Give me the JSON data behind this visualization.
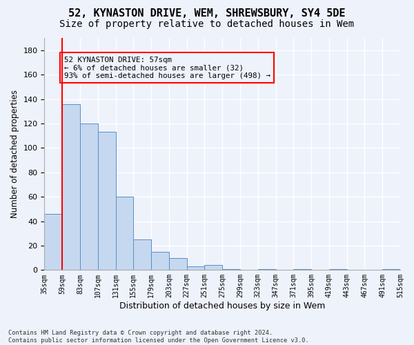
{
  "title1": "52, KYNASTON DRIVE, WEM, SHREWSBURY, SY4 5DE",
  "title2": "Size of property relative to detached houses in Wem",
  "xlabel": "Distribution of detached houses by size in Wem",
  "ylabel": "Number of detached properties",
  "footnote": "Contains HM Land Registry data © Crown copyright and database right 2024.\nContains public sector information licensed under the Open Government Licence v3.0.",
  "bin_edges": [
    "35sqm",
    "59sqm",
    "83sqm",
    "107sqm",
    "131sqm",
    "155sqm",
    "179sqm",
    "203sqm",
    "227sqm",
    "251sqm",
    "275sqm",
    "299sqm",
    "323sqm",
    "347sqm",
    "371sqm",
    "395sqm",
    "419sqm",
    "443sqm",
    "467sqm",
    "491sqm",
    "515sqm"
  ],
  "bar_values": [
    46,
    136,
    120,
    113,
    60,
    25,
    15,
    10,
    3,
    4,
    1,
    0,
    1,
    0,
    1,
    0,
    1,
    0,
    0,
    1
  ],
  "bar_color": "#c5d8f0",
  "bar_edge_color": "#5a8fc2",
  "property_line_label": "52 KYNASTON DRIVE: 57sqm",
  "annotation_line1": "← 6% of detached houses are smaller (32)",
  "annotation_line2": "93% of semi-detached houses are larger (498) →",
  "ylim": [
    0,
    190
  ],
  "yticks": [
    0,
    20,
    40,
    60,
    80,
    100,
    120,
    140,
    160,
    180
  ],
  "background_color": "#eef2fb",
  "grid_color": "#ffffff",
  "title1_fontsize": 11,
  "title2_fontsize": 10,
  "xlabel_fontsize": 9,
  "ylabel_fontsize": 8.5
}
